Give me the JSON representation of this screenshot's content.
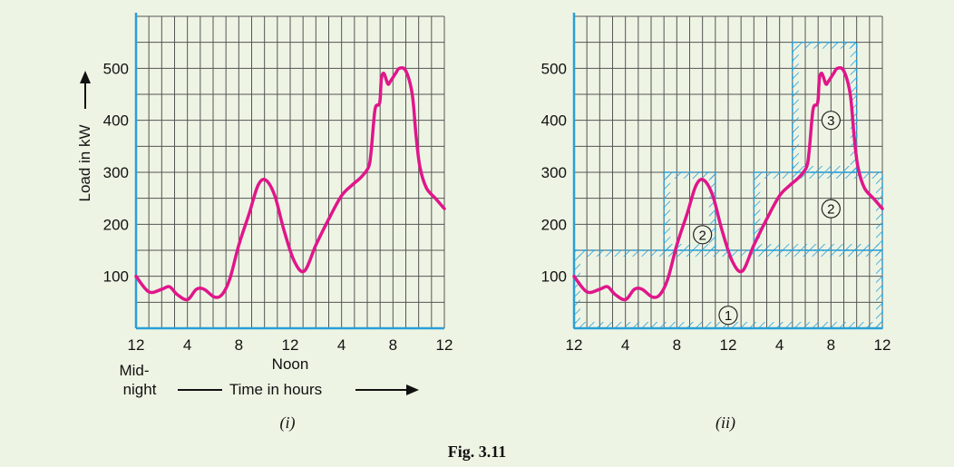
{
  "figure": {
    "caption": "Fig. 3.11",
    "background": "#eef4e4",
    "grid_color": "#555555",
    "axis_color": "#2a9fd6",
    "curve_color": "#e0168a",
    "hatch_color": "#2a9fd6"
  },
  "chart_data": [
    {
      "type": "line",
      "panel_label": "(i)",
      "title": "",
      "xlabel": "Time in hours",
      "ylabel": "Load in kW",
      "x_start_label": "Mid-\nnight",
      "x_mid_label": "Noon",
      "xlim": [
        0,
        24
      ],
      "ylim": [
        0,
        600
      ],
      "x_ticks": [
        0,
        4,
        8,
        12,
        16,
        20,
        24
      ],
      "x_tick_labels": [
        "12",
        "4",
        "8",
        "12",
        "4",
        "8",
        "12"
      ],
      "y_ticks": [
        100,
        200,
        300,
        400,
        500
      ],
      "y_tick_labels": [
        "100",
        "200",
        "300",
        "400",
        "500"
      ],
      "grid": true,
      "series": [
        {
          "x": [
            0,
            1,
            2,
            2.6,
            3.2,
            4,
            4.7,
            5.3,
            6.1,
            6.7,
            7.3,
            8,
            8.8,
            9.5,
            10.1,
            10.8,
            11.5,
            12.3,
            13.1,
            14,
            15,
            16,
            16.8,
            17.5,
            18.1,
            18.3,
            18.6,
            18.9,
            19,
            19.1,
            19.3,
            19.6,
            19.8,
            20.2,
            20.5,
            21,
            21.5,
            21.8,
            22.1,
            22.6,
            23.3,
            24
          ],
          "y": [
            100,
            70,
            75,
            80,
            65,
            55,
            75,
            75,
            60,
            65,
            95,
            160,
            220,
            275,
            285,
            255,
            190,
            130,
            110,
            160,
            210,
            255,
            275,
            290,
            310,
            340,
            420,
            430,
            440,
            480,
            490,
            470,
            475,
            490,
            500,
            495,
            450,
            370,
            310,
            270,
            250,
            230
          ]
        }
      ]
    },
    {
      "type": "line",
      "panel_label": "(ii)",
      "title": "",
      "xlim": [
        0,
        24
      ],
      "ylim": [
        0,
        600
      ],
      "x_ticks": [
        0,
        4,
        8,
        12,
        16,
        20,
        24
      ],
      "x_tick_labels": [
        "12",
        "4",
        "8",
        "12",
        "4",
        "8",
        "12"
      ],
      "y_ticks": [
        100,
        200,
        300,
        400,
        500
      ],
      "y_tick_labels": [
        "100",
        "200",
        "300",
        "400",
        "500"
      ],
      "grid": true,
      "series": [
        {
          "x": [
            0,
            1,
            2,
            2.6,
            3.2,
            4,
            4.7,
            5.3,
            6.1,
            6.7,
            7.3,
            8,
            8.8,
            9.5,
            10.1,
            10.8,
            11.5,
            12.3,
            13.1,
            14,
            15,
            16,
            16.8,
            17.5,
            18.1,
            18.3,
            18.6,
            18.9,
            19,
            19.1,
            19.3,
            19.6,
            19.8,
            20.2,
            20.5,
            21,
            21.5,
            21.8,
            22.1,
            22.6,
            23.3,
            24
          ],
          "y": [
            100,
            70,
            75,
            80,
            65,
            55,
            75,
            75,
            60,
            65,
            95,
            160,
            220,
            275,
            285,
            255,
            190,
            130,
            110,
            160,
            210,
            255,
            275,
            290,
            310,
            340,
            420,
            430,
            440,
            480,
            490,
            470,
            475,
            490,
            500,
            495,
            450,
            370,
            310,
            270,
            250,
            230
          ]
        }
      ],
      "regions": [
        {
          "label": "1",
          "x0": 0,
          "x1": 24,
          "y0": 0,
          "y1": 150,
          "label_x": 12,
          "label_y": 25
        },
        {
          "label": "2",
          "x0": 7,
          "x1": 11,
          "y0": 150,
          "y1": 300,
          "label_x": 10,
          "label_y": 180
        },
        {
          "label": "2",
          "x0": 14,
          "x1": 24,
          "y0": 150,
          "y1": 300,
          "label_x": 20,
          "label_y": 230
        },
        {
          "label": "3",
          "x0": 17,
          "x1": 22,
          "y0": 300,
          "y1": 550,
          "label_x": 20,
          "label_y": 400
        }
      ]
    }
  ]
}
